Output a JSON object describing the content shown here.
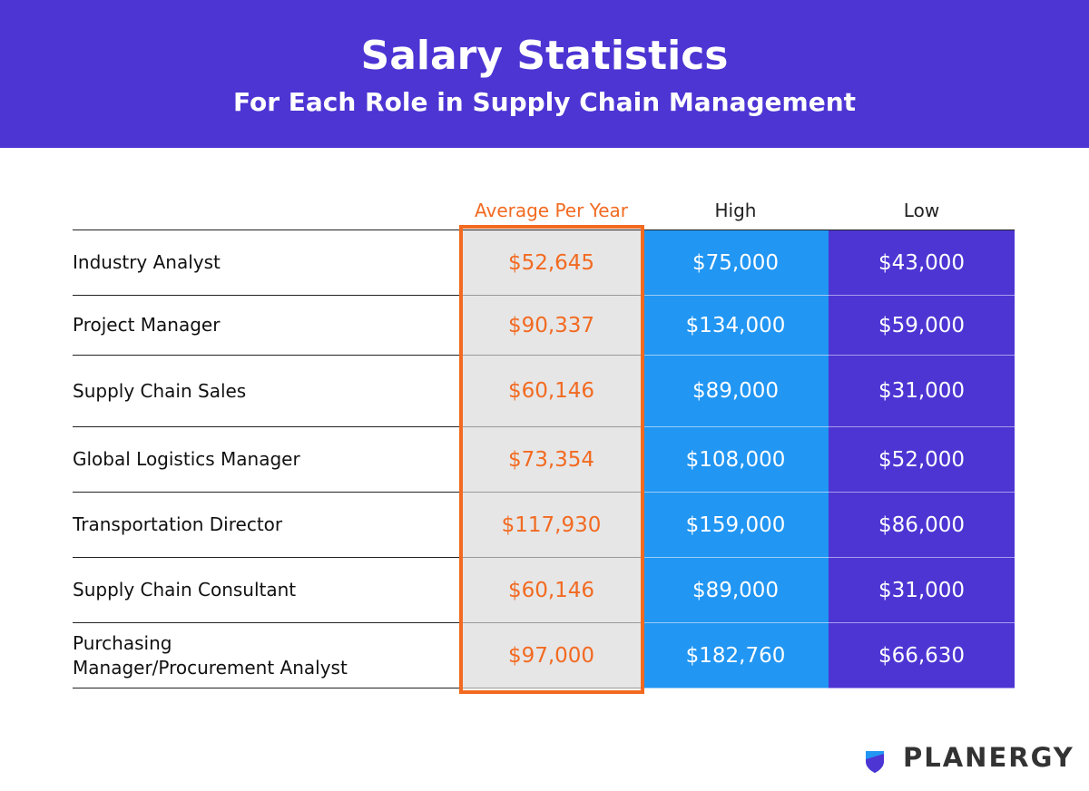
{
  "header": {
    "title": "Salary Statistics",
    "subtitle": "For Each Role in Supply Chain Management"
  },
  "table": {
    "columns": [
      "Average Per Year",
      "High",
      "Low"
    ],
    "rows": [
      [
        "Industry Analyst",
        "$52,645",
        "$75,000",
        "$43,000"
      ],
      [
        "Project Manager",
        "$90,337",
        "$134,000",
        "$59,000"
      ],
      [
        "Supply Chain Sales",
        "$60,146",
        "$89,000",
        "$31,000"
      ],
      [
        "Global Logistics Manager",
        "$73,354",
        "$108,000",
        "$52,000"
      ],
      [
        "Transportation Director",
        "$117,930",
        "$159,000",
        "$86,000"
      ],
      [
        "Supply Chain Consultant",
        "$60,146",
        "$89,000",
        "$31,000"
      ],
      [
        "Purchasing Manager/Procurement Analyst",
        "$97,000",
        "$182,760",
        "$66,630"
      ]
    ]
  },
  "brand": "PLANERGY"
}
